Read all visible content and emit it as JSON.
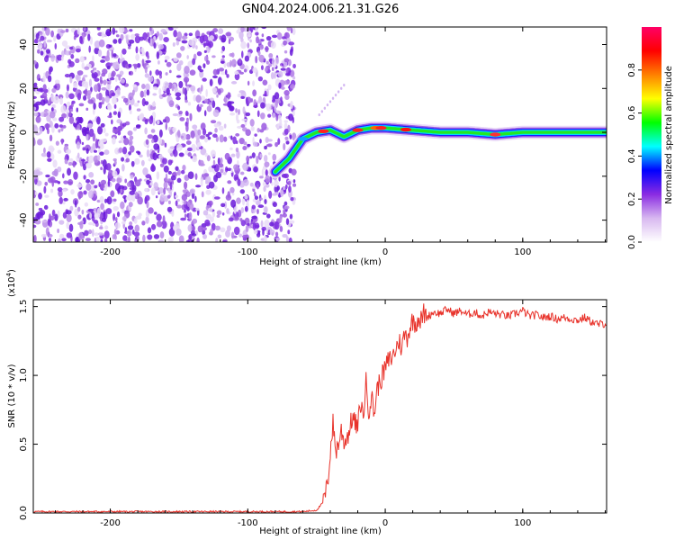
{
  "title": "GN04.2024.006.21.31.G26",
  "chart_data": [
    {
      "type": "heatmap",
      "xlabel": "Height of straight line (km)",
      "ylabel": "Frequency (Hz)",
      "xlim": [
        -256,
        161
      ],
      "ylim": [
        -50,
        48
      ],
      "x_ticks": [
        -200,
        -100,
        0,
        100
      ],
      "x_tick_labels": [
        "-200",
        "-100",
        "0",
        "100"
      ],
      "y_ticks": [
        -40,
        -20,
        0,
        20,
        40
      ],
      "y_tick_labels": [
        "-40",
        "-20",
        "0",
        "20",
        "40"
      ],
      "noise_region_x": [
        -256,
        -66
      ],
      "signal_ridge": {
        "x": [
          -80,
          -70,
          -60,
          -50,
          -40,
          -30,
          -20,
          -10,
          0,
          20,
          40,
          60,
          80,
          100,
          120,
          140,
          161
        ],
        "y": [
          -18,
          -12,
          -3,
          0,
          1,
          -2,
          1,
          2,
          2,
          1,
          0,
          0,
          -1,
          0,
          0,
          0,
          0
        ]
      },
      "colorbar": {
        "label": "Normalized spectral amplitude",
        "range": [
          0,
          1
        ],
        "ticks": [
          0.0,
          0.2,
          0.4,
          0.6,
          0.8
        ],
        "tick_labels": [
          "0.0",
          "0.2",
          "0.4",
          "0.6",
          "0.8"
        ],
        "colors": [
          "#ffffff",
          "#d8b8f0",
          "#8a2be2",
          "#0000ff",
          "#00ffff",
          "#00ff00",
          "#ffff00",
          "#ff8000",
          "#ff0000",
          "#ff0066"
        ]
      },
      "grid": false
    },
    {
      "type": "line",
      "xlabel": "Height of straight line (km)",
      "ylabel": "SNR (10 * v/v)",
      "y_multiplier": "(x10",
      "y_multiplier_exp": "4",
      "y_multiplier_close": ")",
      "xlim": [
        -256,
        161
      ],
      "ylim": [
        0,
        1.55
      ],
      "x_ticks": [
        -200,
        -100,
        0,
        100
      ],
      "x_tick_labels": [
        "-200",
        "-100",
        "0",
        "100"
      ],
      "y_ticks": [
        0,
        0.5,
        1.0,
        1.5
      ],
      "y_tick_labels": [
        "0.0",
        "0.5",
        "1.0",
        "1.5"
      ],
      "series_color": "#e8322a",
      "series": [
        {
          "x": [
            -256,
            -200,
            -150,
            -100,
            -60,
            -50,
            -45,
            -42,
            -40,
            -38,
            -36,
            -34,
            -32,
            -30,
            -28,
            -26,
            -24,
            -22,
            -20,
            -18,
            -16,
            -14,
            -12,
            -10,
            -8,
            -6,
            -4,
            -2,
            0,
            2,
            4,
            6,
            8,
            10,
            12,
            14,
            16,
            18,
            20,
            22,
            24,
            26,
            28,
            30,
            35,
            40,
            45,
            50,
            55,
            60,
            65,
            70,
            75,
            80,
            85,
            90,
            95,
            100,
            105,
            110,
            115,
            120,
            125,
            130,
            135,
            140,
            145,
            150,
            155,
            161
          ],
          "y": [
            0.01,
            0.01,
            0.01,
            0.01,
            0.01,
            0.02,
            0.08,
            0.2,
            0.45,
            0.65,
            0.45,
            0.5,
            0.6,
            0.52,
            0.55,
            0.6,
            0.7,
            0.65,
            0.62,
            0.8,
            0.7,
            0.95,
            0.75,
            0.85,
            0.72,
            0.9,
            0.95,
            1.0,
            1.05,
            1.1,
            1.12,
            1.15,
            1.2,
            1.25,
            1.2,
            1.3,
            1.28,
            1.35,
            1.4,
            1.38,
            1.42,
            1.4,
            1.45,
            1.42,
            1.46,
            1.45,
            1.48,
            1.45,
            1.47,
            1.44,
            1.46,
            1.43,
            1.46,
            1.45,
            1.44,
            1.43,
            1.45,
            1.47,
            1.43,
            1.44,
            1.42,
            1.43,
            1.41,
            1.42,
            1.41,
            1.4,
            1.42,
            1.39,
            1.37,
            1.38
          ]
        }
      ],
      "grid": false
    }
  ]
}
